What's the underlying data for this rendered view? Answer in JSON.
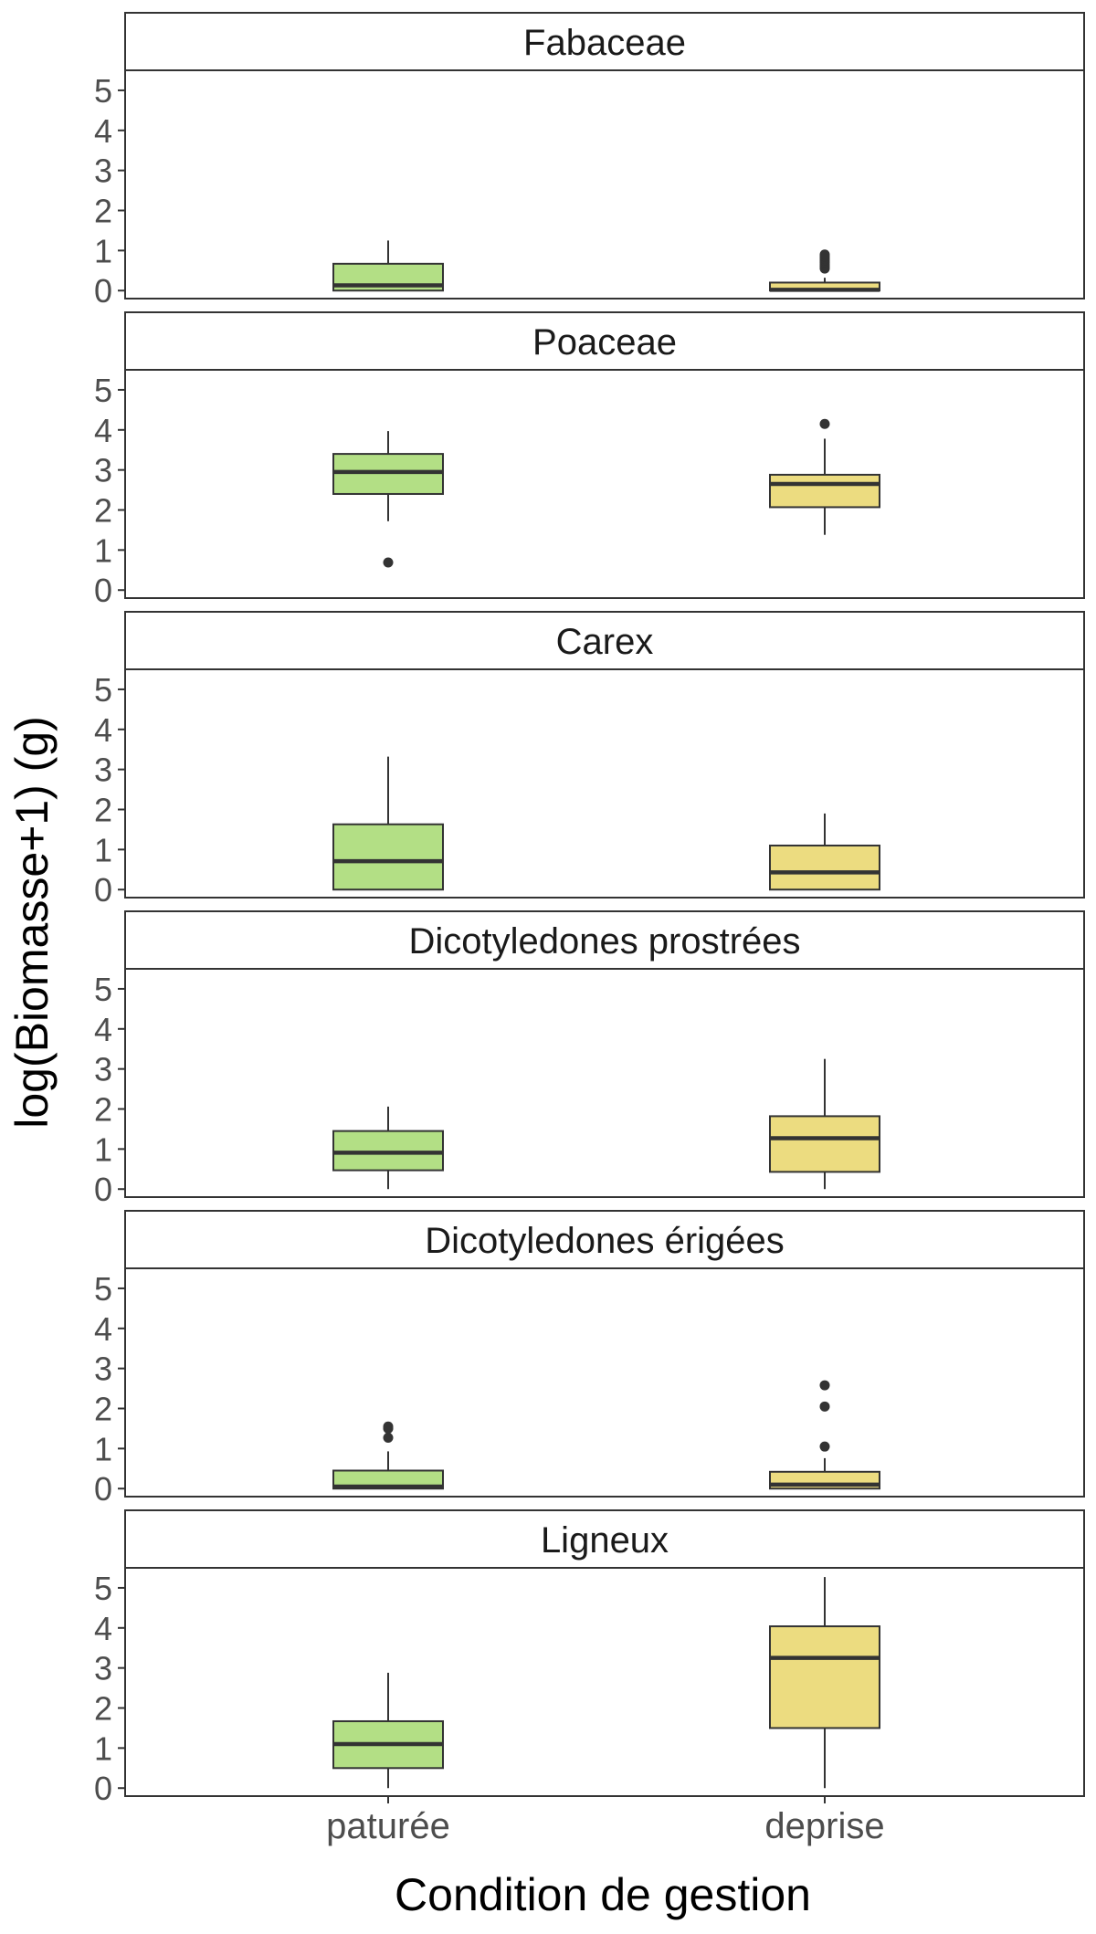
{
  "chart_data": {
    "type": "boxplot",
    "xlabel": "Condition de gestion",
    "ylabel": "log(Biomasse+1) (g)",
    "ylim": [
      -0.2,
      5.5
    ],
    "yticks": [
      "0",
      "1",
      "2",
      "3",
      "4",
      "5"
    ],
    "categories": [
      "paturée",
      "deprise"
    ],
    "colors": {
      "paturée": "#b3df85",
      "deprise": "#ecdc80",
      "stroke": "#333333",
      "panel_border": "#333333"
    },
    "panels": [
      {
        "name": "Fabaceae",
        "boxes": [
          {
            "category": "paturée",
            "whisker_low": 0.0,
            "q1": 0.0,
            "median": 0.13,
            "q3": 0.67,
            "whisker_high": 1.25,
            "outliers": []
          },
          {
            "category": "deprise",
            "whisker_low": 0.0,
            "q1": 0.0,
            "median": 0.02,
            "q3": 0.2,
            "whisker_high": 0.32,
            "outliers": [
              0.55,
              0.6,
              0.65,
              0.7,
              0.75,
              0.8,
              0.85,
              0.9
            ]
          }
        ]
      },
      {
        "name": "Poaceae",
        "boxes": [
          {
            "category": "paturée",
            "whisker_low": 1.72,
            "q1": 2.4,
            "median": 2.95,
            "q3": 3.4,
            "whisker_high": 3.97,
            "outliers": [
              0.69
            ]
          },
          {
            "category": "deprise",
            "whisker_low": 1.38,
            "q1": 2.07,
            "median": 2.65,
            "q3": 2.88,
            "whisker_high": 3.78,
            "outliers": [
              4.15
            ]
          }
        ]
      },
      {
        "name": "Carex",
        "boxes": [
          {
            "category": "paturée",
            "whisker_low": 0.0,
            "q1": 0.0,
            "median": 0.71,
            "q3": 1.63,
            "whisker_high": 3.32,
            "outliers": []
          },
          {
            "category": "deprise",
            "whisker_low": 0.0,
            "q1": 0.0,
            "median": 0.43,
            "q3": 1.1,
            "whisker_high": 1.9,
            "outliers": []
          }
        ]
      },
      {
        "name": "Dicotyledones prostrées",
        "boxes": [
          {
            "category": "paturée",
            "whisker_low": 0.0,
            "q1": 0.47,
            "median": 0.91,
            "q3": 1.45,
            "whisker_high": 2.06,
            "outliers": []
          },
          {
            "category": "deprise",
            "whisker_low": 0.0,
            "q1": 0.43,
            "median": 1.27,
            "q3": 1.82,
            "whisker_high": 3.25,
            "outliers": []
          }
        ]
      },
      {
        "name": "Dicotyledones érigées",
        "boxes": [
          {
            "category": "paturée",
            "whisker_low": 0.0,
            "q1": 0.0,
            "median": 0.05,
            "q3": 0.45,
            "whisker_high": 0.93,
            "outliers": [
              1.27,
              1.5,
              1.55
            ]
          },
          {
            "category": "deprise",
            "whisker_low": 0.0,
            "q1": 0.0,
            "median": 0.1,
            "q3": 0.42,
            "whisker_high": 0.76,
            "outliers": [
              1.05,
              2.05,
              2.58
            ]
          }
        ]
      },
      {
        "name": "Ligneux",
        "boxes": [
          {
            "category": "paturée",
            "whisker_low": 0.0,
            "q1": 0.5,
            "median": 1.1,
            "q3": 1.67,
            "whisker_high": 2.88,
            "outliers": []
          },
          {
            "category": "deprise",
            "whisker_low": 0.0,
            "q1": 1.5,
            "median": 3.25,
            "q3": 4.04,
            "whisker_high": 5.27,
            "outliers": []
          }
        ]
      }
    ]
  }
}
